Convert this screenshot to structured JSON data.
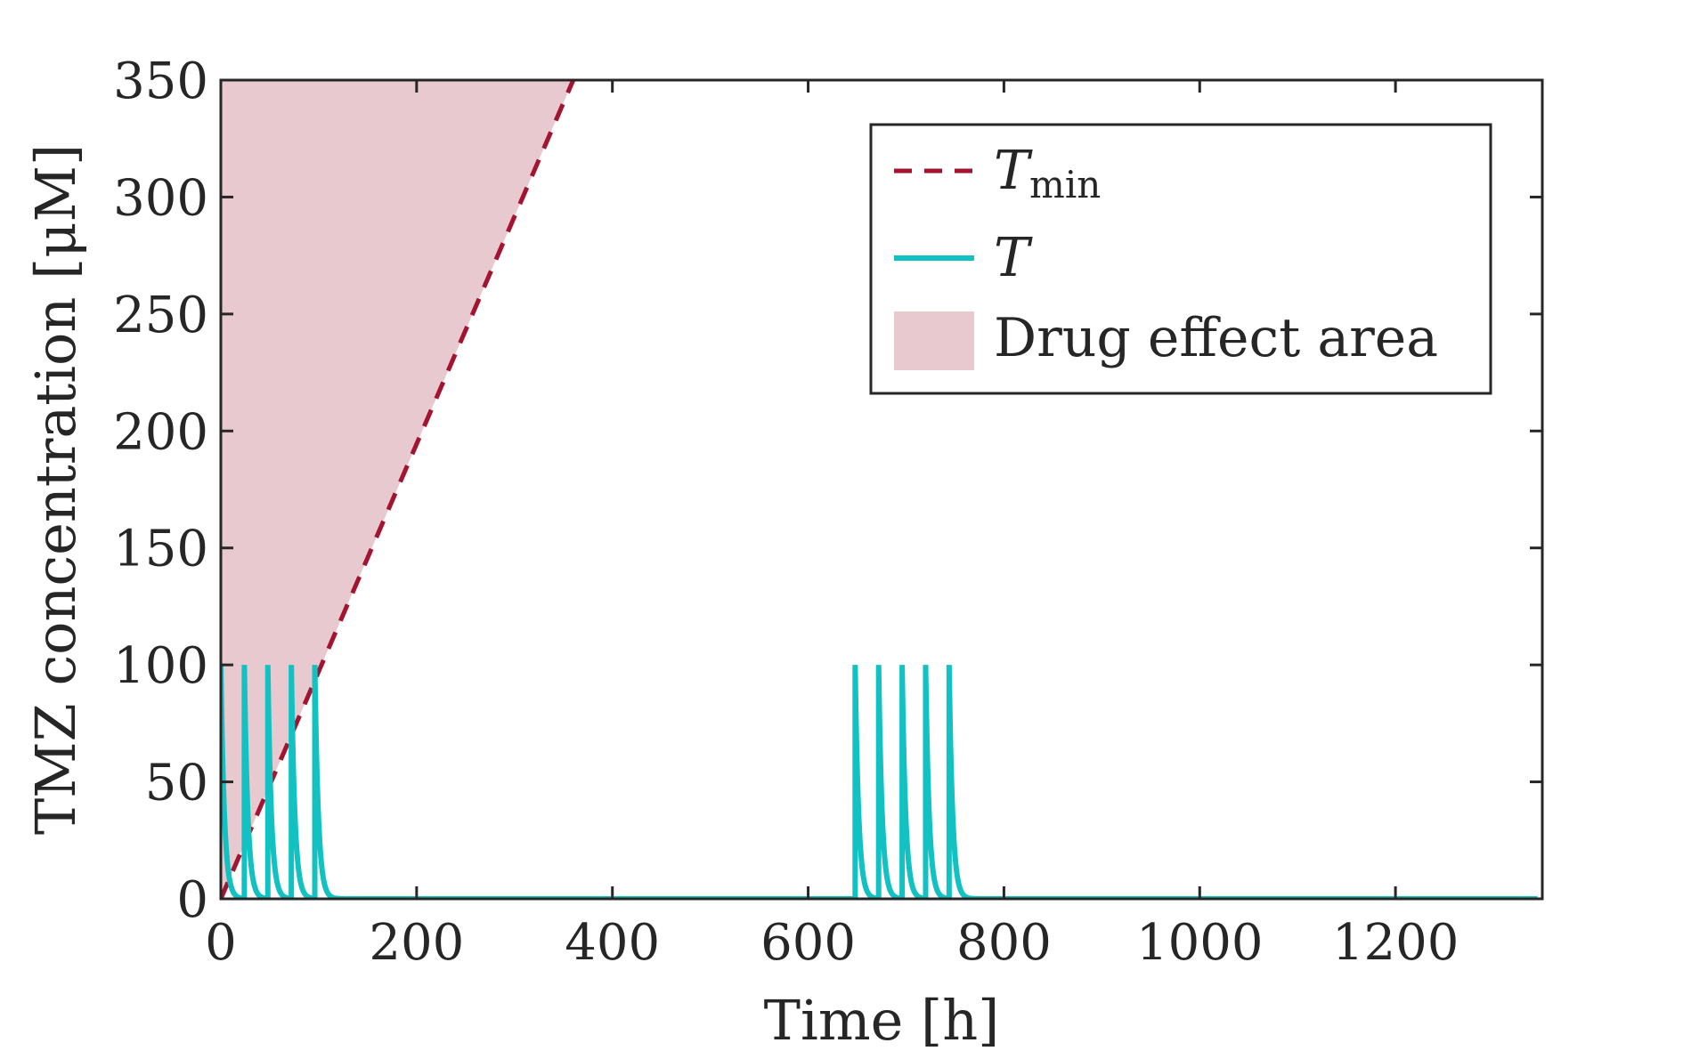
{
  "chart_data": {
    "type": "line",
    "xlabel": "Time [h]",
    "ylabel": "TMZ concentration [μM]",
    "xlim": [
      0,
      1350
    ],
    "ylim": [
      0,
      350
    ],
    "xticks": [
      0,
      200,
      400,
      600,
      800,
      1000,
      1200
    ],
    "yticks": [
      0,
      50,
      100,
      150,
      200,
      250,
      300,
      350
    ],
    "legend_position": "top-right",
    "series": [
      {
        "name": "T_min",
        "label_main": "T",
        "label_sub": "min",
        "style": "dashed",
        "color": "#A2142F",
        "x": [
          0,
          360
        ],
        "y": [
          0,
          350
        ]
      },
      {
        "name": "T",
        "label_main": "T",
        "style": "solid",
        "color": "#12C2C2",
        "dose_times": [
          0,
          24,
          48,
          72,
          96,
          648,
          672,
          696,
          720,
          744
        ],
        "peak": 100,
        "decay_per_hour": 0.28,
        "x_end": 1345
      }
    ],
    "area": {
      "name": "Drug effect area",
      "color": "#E8C9CF",
      "bounded_by": "T_min"
    }
  }
}
